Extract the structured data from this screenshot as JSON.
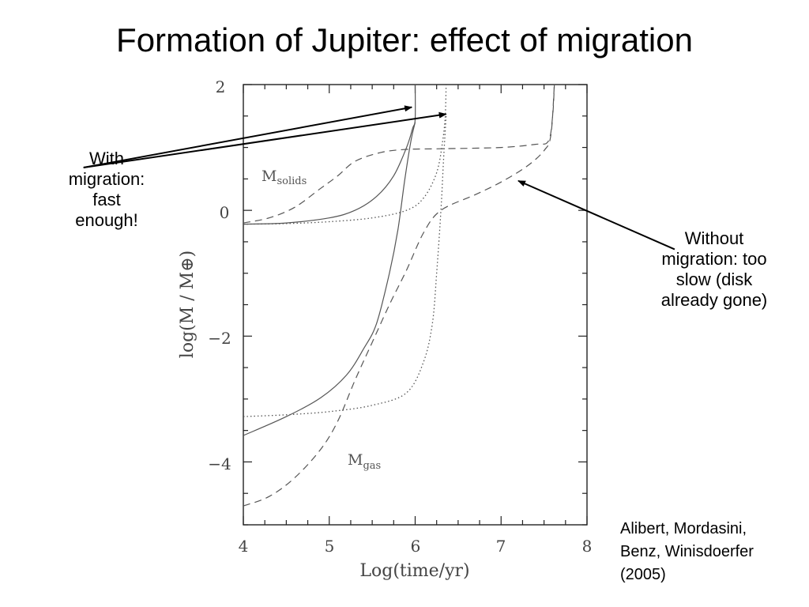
{
  "slide": {
    "title": "Formation of Jupiter: effect of migration",
    "annotation_left": [
      "With",
      "migration:",
      "fast",
      "enough!"
    ],
    "annotation_right": [
      "Without",
      "migration: too",
      "slow (disk",
      "already gone)"
    ],
    "citation": [
      "Alibert, Mordasini,",
      "Benz, Winisdoerfer",
      "(2005)"
    ]
  },
  "chart_data": {
    "type": "line",
    "title": "",
    "xlabel": "Log(time/yr)",
    "ylabel": "log(M / M⊕)",
    "xlim": [
      4,
      8
    ],
    "ylim": [
      -5,
      2
    ],
    "x_ticks": [
      "4",
      "5",
      "6",
      "7",
      "8"
    ],
    "y_ticks": [
      "2",
      "0",
      "−2",
      "−4"
    ],
    "y_tick_values": [
      2,
      0,
      -2,
      -4
    ],
    "grid": false,
    "line_color": "#555555",
    "arrow_color": "#000000",
    "curve_labels": [
      {
        "main": "M",
        "sub": "solids",
        "x": 4.22,
        "y": 0.5
      },
      {
        "main": "M",
        "sub": "gas",
        "x": 5.2,
        "y": -4.0
      }
    ],
    "series": [
      {
        "style": "solid",
        "x": [
          4.0,
          4.5,
          5.0,
          5.3,
          5.55,
          5.75,
          5.9,
          5.97,
          6.0,
          6.0
        ],
        "y": [
          -0.22,
          -0.2,
          -0.12,
          0.0,
          0.22,
          0.55,
          1.0,
          1.3,
          1.45,
          2.0
        ]
      },
      {
        "style": "solid",
        "x": [
          4.0,
          4.5,
          4.9,
          5.2,
          5.4,
          5.55,
          5.7,
          5.8,
          5.88,
          5.95,
          6.0
        ],
        "y": [
          -3.58,
          -3.28,
          -2.98,
          -2.62,
          -2.2,
          -1.8,
          -1.0,
          -0.3,
          0.5,
          1.1,
          1.4
        ]
      },
      {
        "style": "dashed",
        "x": [
          4.0,
          4.3,
          4.6,
          4.9,
          5.1,
          5.3,
          5.6,
          5.9,
          6.3,
          7.0,
          7.4,
          7.55,
          7.6,
          7.62
        ],
        "y": [
          -0.2,
          -0.12,
          0.05,
          0.35,
          0.55,
          0.78,
          0.92,
          0.97,
          0.98,
          1.0,
          1.05,
          1.1,
          1.5,
          2.0
        ]
      },
      {
        "style": "dashed",
        "x": [
          4.0,
          4.3,
          4.6,
          4.9,
          5.1,
          5.3,
          5.5,
          5.7,
          5.9,
          6.1,
          6.3,
          6.7,
          7.0,
          7.3,
          7.5,
          7.58,
          7.62
        ],
        "y": [
          -4.7,
          -4.55,
          -4.25,
          -3.8,
          -3.35,
          -2.7,
          -2.1,
          -1.5,
          -0.95,
          -0.35,
          0.0,
          0.25,
          0.45,
          0.7,
          0.95,
          1.2,
          2.0
        ]
      },
      {
        "style": "dotted",
        "x": [
          4.0,
          4.5,
          5.0,
          5.5,
          5.9,
          6.1,
          6.25,
          6.32,
          6.35,
          6.36
        ],
        "y": [
          -0.22,
          -0.21,
          -0.18,
          -0.12,
          0.0,
          0.2,
          0.6,
          1.1,
          1.5,
          2.0
        ]
      },
      {
        "style": "dotted",
        "x": [
          4.0,
          4.5,
          5.0,
          5.5,
          5.9,
          6.1,
          6.2,
          6.25,
          6.3,
          6.33,
          6.36
        ],
        "y": [
          -3.28,
          -3.25,
          -3.2,
          -3.1,
          -2.9,
          -2.4,
          -1.8,
          -1.0,
          0.0,
          0.8,
          1.5
        ]
      }
    ],
    "arrows": [
      {
        "from": [
          2.14,
          0.68
        ],
        "to": [
          5.96,
          1.64
        ]
      },
      {
        "from": [
          2.14,
          0.68
        ],
        "to": [
          6.36,
          1.53
        ]
      },
      {
        "from": [
          9.02,
          -0.62
        ],
        "to": [
          7.2,
          0.47
        ]
      }
    ]
  }
}
